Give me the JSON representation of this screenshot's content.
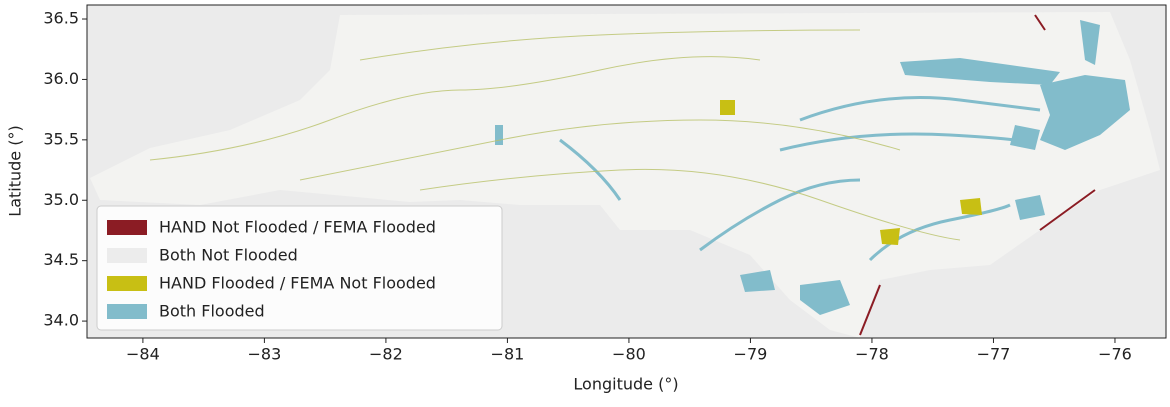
{
  "chart_data": {
    "type": "map",
    "xlabel": "Longitude (°)",
    "ylabel": "Latitude (°)",
    "xlim": [
      -84.46,
      -75.58
    ],
    "ylim": [
      33.86,
      36.616
    ],
    "xticks": [
      {
        "value": -84,
        "label": "−84"
      },
      {
        "value": -83,
        "label": "−83"
      },
      {
        "value": -82,
        "label": "−82"
      },
      {
        "value": -81,
        "label": "−81"
      },
      {
        "value": -80,
        "label": "−80"
      },
      {
        "value": -79,
        "label": "−79"
      },
      {
        "value": -78,
        "label": "−78"
      },
      {
        "value": -77,
        "label": "−77"
      },
      {
        "value": -76,
        "label": "−76"
      }
    ],
    "yticks": [
      {
        "value": 34,
        "label": "34.0"
      },
      34.5,
      {
        "value": 35,
        "label": "35.0"
      },
      35.5,
      {
        "value": 36,
        "label": "36.0"
      },
      36.5
    ],
    "legend_position": "lower left",
    "series": [
      {
        "name": "HAND Not Flooded / FEMA Flooded",
        "color": "#8b1c24"
      },
      {
        "name": "Both Not Flooded",
        "color": "#ececec"
      },
      {
        "name": "HAND Flooded / FEMA Not Flooded",
        "color": "#c8bf14"
      },
      {
        "name": "Both Flooded",
        "color": "#82bccb"
      }
    ]
  }
}
